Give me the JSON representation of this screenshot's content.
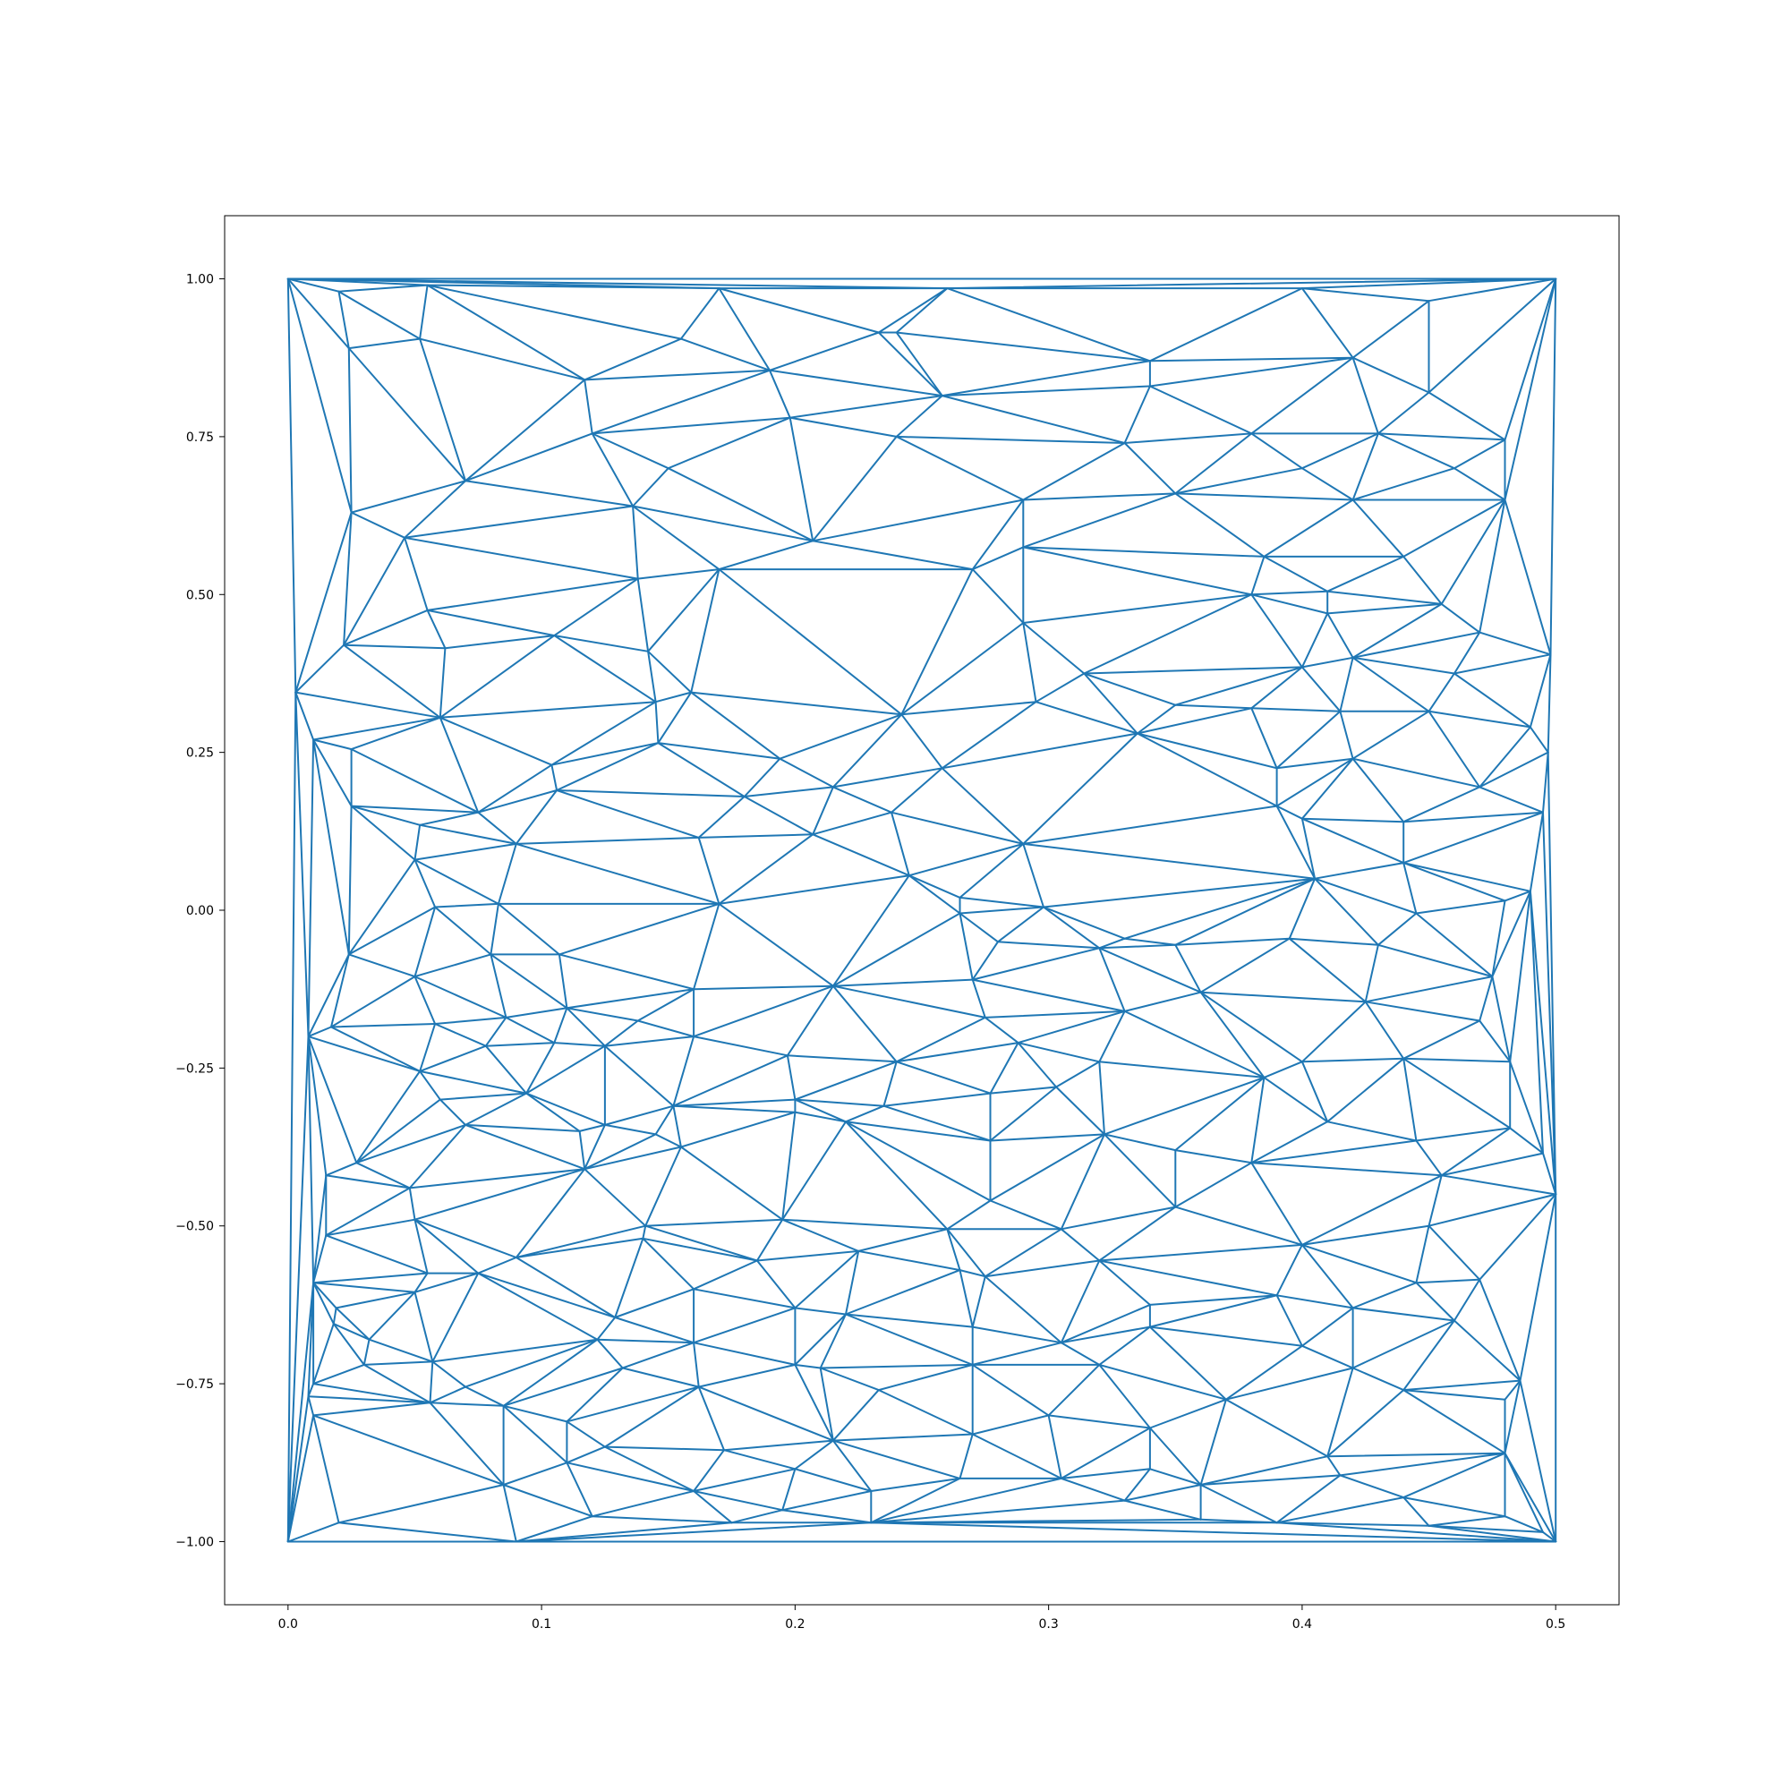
{
  "chart_data": {
    "type": "triangulation",
    "title": "",
    "xlabel": "",
    "ylabel": "",
    "xlim": [
      -0.025,
      0.525
    ],
    "ylim": [
      -1.1,
      1.1
    ],
    "grid": false,
    "edge_color": "#1f77b4",
    "x_ticks": [
      {
        "value": 0.0,
        "label": "0.0"
      },
      {
        "value": 0.1,
        "label": "0.1"
      },
      {
        "value": 0.2,
        "label": "0.2"
      },
      {
        "value": 0.3,
        "label": "0.3"
      },
      {
        "value": 0.4,
        "label": "0.4"
      },
      {
        "value": 0.5,
        "label": "0.5"
      }
    ],
    "y_ticks": [
      {
        "value": 1.0,
        "label": "1.00"
      },
      {
        "value": 0.75,
        "label": "0.75"
      },
      {
        "value": 0.5,
        "label": "0.50"
      },
      {
        "value": 0.25,
        "label": "0.25"
      },
      {
        "value": 0.0,
        "label": "0.00"
      },
      {
        "value": -0.25,
        "label": "−0.25"
      },
      {
        "value": -0.5,
        "label": "−0.50"
      },
      {
        "value": -0.75,
        "label": "−0.75"
      },
      {
        "value": -1.0,
        "label": "−1.00"
      }
    ],
    "points": [
      [
        0.0,
        1.0
      ],
      [
        0.5,
        1.0
      ],
      [
        0.0,
        -1.0
      ],
      [
        0.5,
        -1.0
      ],
      [
        0.02,
        0.98
      ],
      [
        0.055,
        0.99
      ],
      [
        0.17,
        0.985
      ],
      [
        0.26,
        0.985
      ],
      [
        0.4,
        0.985
      ],
      [
        0.45,
        0.965
      ],
      [
        0.024,
        0.89
      ],
      [
        0.052,
        0.905
      ],
      [
        0.155,
        0.905
      ],
      [
        0.117,
        0.84
      ],
      [
        0.19,
        0.855
      ],
      [
        0.233,
        0.915
      ],
      [
        0.24,
        0.915
      ],
      [
        0.34,
        0.87
      ],
      [
        0.42,
        0.875
      ],
      [
        0.45,
        0.82
      ],
      [
        0.12,
        0.755
      ],
      [
        0.198,
        0.78
      ],
      [
        0.258,
        0.815
      ],
      [
        0.34,
        0.83
      ],
      [
        0.38,
        0.755
      ],
      [
        0.43,
        0.755
      ],
      [
        0.48,
        0.745
      ],
      [
        0.07,
        0.68
      ],
      [
        0.15,
        0.7
      ],
      [
        0.24,
        0.75
      ],
      [
        0.33,
        0.74
      ],
      [
        0.4,
        0.7
      ],
      [
        0.46,
        0.7
      ],
      [
        0.025,
        0.63
      ],
      [
        0.136,
        0.64
      ],
      [
        0.29,
        0.65
      ],
      [
        0.35,
        0.66
      ],
      [
        0.42,
        0.65
      ],
      [
        0.48,
        0.65
      ],
      [
        0.046,
        0.59
      ],
      [
        0.207,
        0.585
      ],
      [
        0.29,
        0.575
      ],
      [
        0.385,
        0.56
      ],
      [
        0.44,
        0.56
      ],
      [
        0.055,
        0.475
      ],
      [
        0.138,
        0.525
      ],
      [
        0.17,
        0.54
      ],
      [
        0.27,
        0.54
      ],
      [
        0.38,
        0.5
      ],
      [
        0.41,
        0.505
      ],
      [
        0.455,
        0.485
      ],
      [
        0.022,
        0.42
      ],
      [
        0.105,
        0.435
      ],
      [
        0.142,
        0.41
      ],
      [
        0.29,
        0.455
      ],
      [
        0.41,
        0.47
      ],
      [
        0.47,
        0.44
      ],
      [
        0.003,
        0.345
      ],
      [
        0.062,
        0.415
      ],
      [
        0.159,
        0.345
      ],
      [
        0.314,
        0.375
      ],
      [
        0.4,
        0.385
      ],
      [
        0.42,
        0.4
      ],
      [
        0.46,
        0.375
      ],
      [
        0.498,
        0.405
      ],
      [
        0.01,
        0.27
      ],
      [
        0.06,
        0.305
      ],
      [
        0.145,
        0.33
      ],
      [
        0.242,
        0.31
      ],
      [
        0.295,
        0.33
      ],
      [
        0.35,
        0.325
      ],
      [
        0.38,
        0.32
      ],
      [
        0.415,
        0.315
      ],
      [
        0.45,
        0.315
      ],
      [
        0.49,
        0.29
      ],
      [
        0.025,
        0.255
      ],
      [
        0.104,
        0.23
      ],
      [
        0.146,
        0.265
      ],
      [
        0.194,
        0.24
      ],
      [
        0.258,
        0.225
      ],
      [
        0.335,
        0.28
      ],
      [
        0.39,
        0.225
      ],
      [
        0.42,
        0.24
      ],
      [
        0.47,
        0.195
      ],
      [
        0.497,
        0.25
      ],
      [
        0.025,
        0.165
      ],
      [
        0.052,
        0.135
      ],
      [
        0.075,
        0.155
      ],
      [
        0.106,
        0.19
      ],
      [
        0.162,
        0.115
      ],
      [
        0.18,
        0.18
      ],
      [
        0.215,
        0.195
      ],
      [
        0.238,
        0.155
      ],
      [
        0.29,
        0.105
      ],
      [
        0.39,
        0.165
      ],
      [
        0.4,
        0.145
      ],
      [
        0.44,
        0.14
      ],
      [
        0.495,
        0.155
      ],
      [
        0.05,
        0.08
      ],
      [
        0.09,
        0.105
      ],
      [
        0.17,
        0.01
      ],
      [
        0.207,
        0.12
      ],
      [
        0.245,
        0.055
      ],
      [
        0.265,
        0.02
      ],
      [
        0.298,
        0.005
      ],
      [
        0.405,
        0.05
      ],
      [
        0.44,
        0.075
      ],
      [
        0.48,
        0.015
      ],
      [
        0.49,
        0.03
      ],
      [
        0.024,
        -0.07
      ],
      [
        0.058,
        0.005
      ],
      [
        0.083,
        0.01
      ],
      [
        0.08,
        -0.07
      ],
      [
        0.107,
        -0.07
      ],
      [
        0.265,
        -0.005
      ],
      [
        0.27,
        -0.11
      ],
      [
        0.28,
        -0.05
      ],
      [
        0.32,
        -0.06
      ],
      [
        0.33,
        -0.045
      ],
      [
        0.35,
        -0.055
      ],
      [
        0.395,
        -0.045
      ],
      [
        0.43,
        -0.055
      ],
      [
        0.445,
        -0.005
      ],
      [
        0.475,
        -0.105
      ],
      [
        0.05,
        -0.105
      ],
      [
        0.017,
        -0.185
      ],
      [
        0.058,
        -0.18
      ],
      [
        0.086,
        -0.17
      ],
      [
        0.11,
        -0.155
      ],
      [
        0.138,
        -0.175
      ],
      [
        0.16,
        -0.125
      ],
      [
        0.215,
        -0.12
      ],
      [
        0.275,
        -0.17
      ],
      [
        0.33,
        -0.16
      ],
      [
        0.36,
        -0.13
      ],
      [
        0.425,
        -0.145
      ],
      [
        0.47,
        -0.175
      ],
      [
        0.482,
        -0.24
      ],
      [
        0.008,
        -0.2
      ],
      [
        0.052,
        -0.255
      ],
      [
        0.078,
        -0.215
      ],
      [
        0.105,
        -0.21
      ],
      [
        0.125,
        -0.215
      ],
      [
        0.16,
        -0.2
      ],
      [
        0.197,
        -0.23
      ],
      [
        0.24,
        -0.24
      ],
      [
        0.288,
        -0.21
      ],
      [
        0.32,
        -0.24
      ],
      [
        0.4,
        -0.24
      ],
      [
        0.44,
        -0.235
      ],
      [
        0.06,
        -0.3
      ],
      [
        0.094,
        -0.29
      ],
      [
        0.125,
        -0.34
      ],
      [
        0.152,
        -0.31
      ],
      [
        0.2,
        -0.3
      ],
      [
        0.235,
        -0.31
      ],
      [
        0.277,
        -0.29
      ],
      [
        0.303,
        -0.28
      ],
      [
        0.385,
        -0.265
      ],
      [
        0.41,
        -0.335
      ],
      [
        0.482,
        -0.345
      ],
      [
        0.495,
        -0.385
      ],
      [
        0.027,
        -0.4
      ],
      [
        0.07,
        -0.34
      ],
      [
        0.115,
        -0.35
      ],
      [
        0.145,
        -0.355
      ],
      [
        0.155,
        -0.375
      ],
      [
        0.2,
        -0.32
      ],
      [
        0.22,
        -0.335
      ],
      [
        0.277,
        -0.365
      ],
      [
        0.322,
        -0.355
      ],
      [
        0.35,
        -0.38
      ],
      [
        0.38,
        -0.4
      ],
      [
        0.445,
        -0.365
      ],
      [
        0.455,
        -0.42
      ],
      [
        0.015,
        -0.42
      ],
      [
        0.048,
        -0.44
      ],
      [
        0.117,
        -0.41
      ],
      [
        0.141,
        -0.5
      ],
      [
        0.195,
        -0.49
      ],
      [
        0.277,
        -0.46
      ],
      [
        0.35,
        -0.47
      ],
      [
        0.5,
        -0.45
      ],
      [
        0.015,
        -0.515
      ],
      [
        0.05,
        -0.49
      ],
      [
        0.09,
        -0.55
      ],
      [
        0.14,
        -0.52
      ],
      [
        0.225,
        -0.54
      ],
      [
        0.26,
        -0.505
      ],
      [
        0.305,
        -0.505
      ],
      [
        0.4,
        -0.53
      ],
      [
        0.45,
        -0.5
      ],
      [
        0.01,
        -0.59
      ],
      [
        0.019,
        -0.63
      ],
      [
        0.055,
        -0.575
      ],
      [
        0.075,
        -0.575
      ],
      [
        0.16,
        -0.6
      ],
      [
        0.185,
        -0.555
      ],
      [
        0.265,
        -0.57
      ],
      [
        0.275,
        -0.58
      ],
      [
        0.32,
        -0.555
      ],
      [
        0.39,
        -0.61
      ],
      [
        0.445,
        -0.59
      ],
      [
        0.47,
        -0.585
      ],
      [
        0.018,
        -0.655
      ],
      [
        0.05,
        -0.605
      ],
      [
        0.129,
        -0.645
      ],
      [
        0.2,
        -0.63
      ],
      [
        0.22,
        -0.64
      ],
      [
        0.27,
        -0.66
      ],
      [
        0.34,
        -0.625
      ],
      [
        0.42,
        -0.63
      ],
      [
        0.46,
        -0.65
      ],
      [
        0.032,
        -0.68
      ],
      [
        0.122,
        -0.68
      ],
      [
        0.16,
        -0.685
      ],
      [
        0.2,
        -0.72
      ],
      [
        0.305,
        -0.685
      ],
      [
        0.34,
        -0.66
      ],
      [
        0.4,
        -0.69
      ],
      [
        0.42,
        -0.725
      ],
      [
        0.01,
        -0.75
      ],
      [
        0.03,
        -0.72
      ],
      [
        0.057,
        -0.715
      ],
      [
        0.07,
        -0.755
      ],
      [
        0.132,
        -0.725
      ],
      [
        0.162,
        -0.755
      ],
      [
        0.21,
        -0.725
      ],
      [
        0.27,
        -0.72
      ],
      [
        0.32,
        -0.72
      ],
      [
        0.44,
        -0.76
      ],
      [
        0.48,
        -0.775
      ],
      [
        0.008,
        -0.77
      ],
      [
        0.056,
        -0.78
      ],
      [
        0.085,
        -0.785
      ],
      [
        0.11,
        -0.81
      ],
      [
        0.125,
        -0.85
      ],
      [
        0.172,
        -0.855
      ],
      [
        0.215,
        -0.84
      ],
      [
        0.233,
        -0.76
      ],
      [
        0.27,
        -0.83
      ],
      [
        0.3,
        -0.8
      ],
      [
        0.34,
        -0.82
      ],
      [
        0.37,
        -0.775
      ],
      [
        0.41,
        -0.865
      ],
      [
        0.486,
        -0.745
      ],
      [
        0.01,
        -0.8
      ],
      [
        0.085,
        -0.91
      ],
      [
        0.11,
        -0.875
      ],
      [
        0.16,
        -0.92
      ],
      [
        0.2,
        -0.885
      ],
      [
        0.23,
        -0.92
      ],
      [
        0.265,
        -0.9
      ],
      [
        0.305,
        -0.9
      ],
      [
        0.34,
        -0.885
      ],
      [
        0.36,
        -0.91
      ],
      [
        0.415,
        -0.895
      ],
      [
        0.44,
        -0.93
      ],
      [
        0.48,
        -0.86
      ],
      [
        0.02,
        -0.97
      ],
      [
        0.09,
        -1.0
      ],
      [
        0.12,
        -0.96
      ],
      [
        0.175,
        -0.97
      ],
      [
        0.195,
        -0.95
      ],
      [
        0.23,
        -0.97
      ],
      [
        0.33,
        -0.935
      ],
      [
        0.36,
        -0.965
      ],
      [
        0.39,
        -0.97
      ],
      [
        0.45,
        -0.975
      ],
      [
        0.48,
        -0.96
      ],
      [
        0.495,
        -0.985
      ]
    ]
  }
}
